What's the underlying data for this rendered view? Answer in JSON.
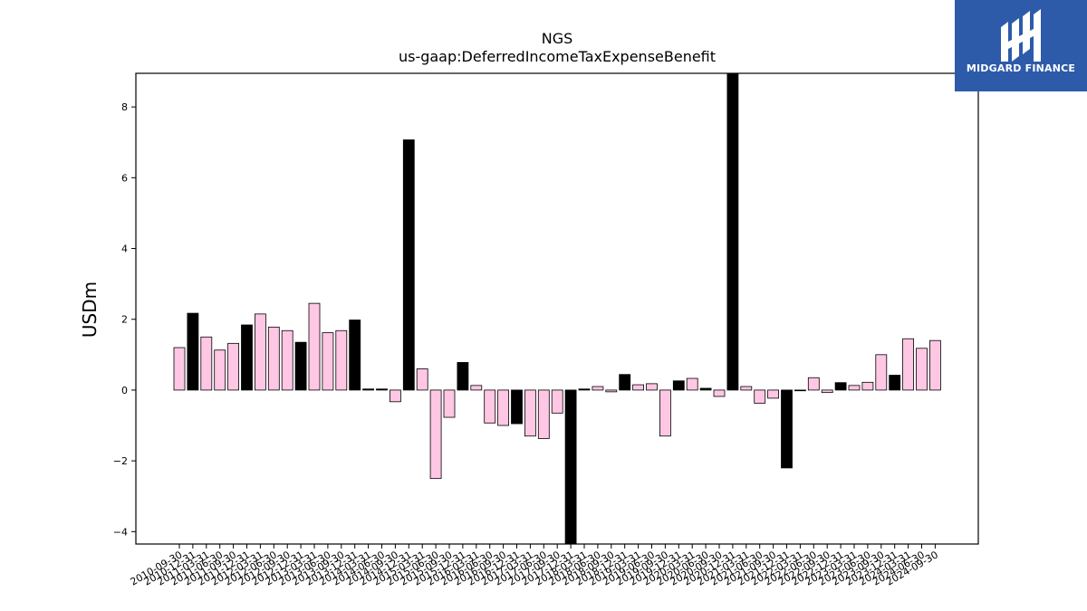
{
  "chart_data": {
    "type": "bar",
    "title": "NGS",
    "subtitle": "us-gaap:DeferredIncomeTaxExpenseBenefit",
    "ylabel": "USDm",
    "xlabel": "",
    "ylim": [
      -4.35,
      8.95
    ],
    "yticks": [
      -4,
      -2,
      0,
      2,
      4,
      6,
      8
    ],
    "ytick_labels": [
      "−4",
      "−2",
      "0",
      "2",
      "4",
      "6",
      "8"
    ],
    "grid": false,
    "colors": {
      "pink": "#ffc7e4",
      "black": "#000000",
      "edge": "#000000"
    },
    "categories": [
      "2010-09-30",
      "2010-12-31",
      "2011-03-31",
      "2011-06-30",
      "2011-09-30",
      "2011-12-31",
      "2012-03-31",
      "2012-06-30",
      "2012-09-30",
      "2012-12-31",
      "2013-03-31",
      "2013-06-30",
      "2013-09-30",
      "2013-12-31",
      "2014-03-31",
      "2014-06-30",
      "2014-09-30",
      "2014-12-31",
      "2015-03-31",
      "2015-06-30",
      "2015-09-30",
      "2015-12-31",
      "2016-03-31",
      "2016-06-30",
      "2016-09-30",
      "2016-12-31",
      "2017-03-31",
      "2017-06-30",
      "2017-09-30",
      "2017-12-31",
      "2018-03-31",
      "2018-06-30",
      "2018-09-30",
      "2018-12-31",
      "2019-03-31",
      "2019-06-30",
      "2019-09-30",
      "2019-12-31",
      "2020-03-31",
      "2020-06-30",
      "2020-09-30",
      "2020-12-31",
      "2021-03-31",
      "2021-06-30",
      "2021-09-30",
      "2021-12-31",
      "2022-03-31",
      "2022-06-30",
      "2022-09-30",
      "2022-12-31",
      "2023-03-31",
      "2023-06-30",
      "2023-09-30",
      "2023-12-31",
      "2024-03-31",
      "2024-06-30",
      "2024-09-30"
    ],
    "values": [
      1.2,
      2.17,
      1.5,
      1.13,
      1.32,
      1.84,
      2.15,
      1.78,
      1.68,
      1.35,
      2.45,
      1.62,
      1.68,
      1.98,
      0.03,
      0.03,
      -0.33,
      7.07,
      0.6,
      -2.5,
      -0.77,
      0.78,
      0.13,
      -0.93,
      -1.0,
      -0.95,
      -1.3,
      -1.37,
      -0.65,
      -4.35,
      0.03,
      0.1,
      -0.05,
      0.44,
      0.15,
      0.18,
      -1.3,
      0.26,
      0.33,
      0.05,
      -0.18,
      8.95,
      0.1,
      -0.37,
      -0.23,
      -2.2,
      -0.02,
      0.35,
      -0.07,
      0.21,
      0.13,
      0.22,
      1.0,
      0.42,
      1.45,
      1.18,
      1.4
    ],
    "bar_colors": [
      "pink",
      "black",
      "pink",
      "pink",
      "pink",
      "black",
      "pink",
      "pink",
      "pink",
      "black",
      "pink",
      "pink",
      "pink",
      "black",
      "black",
      "black",
      "pink",
      "black",
      "pink",
      "pink",
      "pink",
      "black",
      "pink",
      "pink",
      "pink",
      "black",
      "pink",
      "pink",
      "pink",
      "black",
      "black",
      "pink",
      "pink",
      "black",
      "pink",
      "pink",
      "pink",
      "black",
      "pink",
      "black",
      "pink",
      "black",
      "pink",
      "pink",
      "pink",
      "black",
      "black",
      "pink",
      "pink",
      "black",
      "pink",
      "pink",
      "pink",
      "black",
      "pink",
      "pink",
      "pink"
    ]
  },
  "logo": {
    "text": "MIDGARD FINANCE"
  }
}
